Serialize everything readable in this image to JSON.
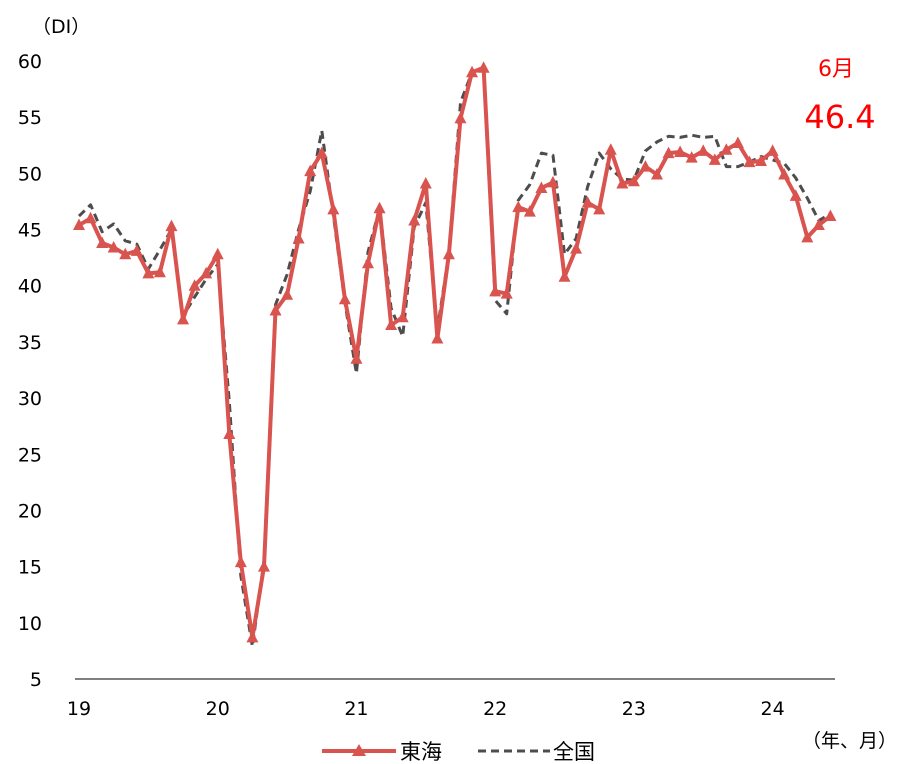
{
  "chart_data": {
    "type": "line",
    "y_unit_label": "（DI）",
    "x_unit_label": "（年、月）",
    "ylim": [
      5,
      60
    ],
    "yticks": [
      5,
      10,
      15,
      20,
      25,
      30,
      35,
      40,
      45,
      50,
      55,
      60
    ],
    "xlim": [
      0,
      67
    ],
    "xticks": [
      {
        "label": "19",
        "x": 0
      },
      {
        "label": "20",
        "x": 12
      },
      {
        "label": "21",
        "x": 24
      },
      {
        "label": "22",
        "x": 36
      },
      {
        "label": "23",
        "x": 48
      },
      {
        "label": "24",
        "x": 60
      }
    ],
    "grid": false,
    "legend_position": "bottom",
    "series": [
      {
        "name": "東海",
        "color": "#d9534f",
        "marker": "triangle",
        "values": [
          45.4,
          46.0,
          43.8,
          43.4,
          42.8,
          43.1,
          41.1,
          41.2,
          45.3,
          37.0,
          40.0,
          41.1,
          42.8,
          26.8,
          15.4,
          8.7,
          15.0,
          37.8,
          39.2,
          44.2,
          50.2,
          51.8,
          46.8,
          38.8,
          33.5,
          42.0,
          46.9,
          36.5,
          37.2,
          45.8,
          49.1,
          35.3,
          42.8,
          54.9,
          59.0,
          59.4,
          39.5,
          39.3,
          47.0,
          46.6,
          48.7,
          49.2,
          40.8,
          43.3,
          47.4,
          46.8,
          52.1,
          49.1,
          49.3,
          50.6,
          49.9,
          51.8,
          51.9,
          51.4,
          52.0,
          51.2,
          52.1,
          52.7,
          51.0,
          51.1,
          52.0,
          49.9,
          48.0,
          44.3,
          45.4,
          46.2
        ]
      },
      {
        "name": "全国",
        "color": "#4d4d4d",
        "marker": "none",
        "values": [
          46.2,
          47.2,
          44.8,
          45.5,
          44.0,
          43.7,
          41.5,
          43.2,
          45.0,
          37.3,
          39.0,
          40.6,
          41.9,
          29.7,
          14.2,
          7.9,
          15.5,
          38.3,
          41.0,
          45.0,
          48.4,
          53.8,
          46.3,
          38.5,
          32.2,
          43.0,
          46.9,
          38.0,
          35.5,
          45.2,
          47.4,
          36.1,
          42.9,
          56.3,
          59.0,
          59.3,
          38.7,
          37.5,
          47.6,
          49.0,
          51.8,
          51.6,
          42.8,
          44.2,
          48.8,
          51.8,
          50.4,
          49.5,
          49.4,
          52.0,
          52.8,
          53.3,
          53.2,
          53.4,
          53.2,
          53.3,
          50.6,
          50.6,
          51.0,
          51.5,
          51.2,
          50.9,
          49.6,
          47.8,
          45.8,
          46.4
        ]
      }
    ],
    "annotation": {
      "month": "6月",
      "value": "46.4",
      "color": "#ff0000"
    }
  }
}
